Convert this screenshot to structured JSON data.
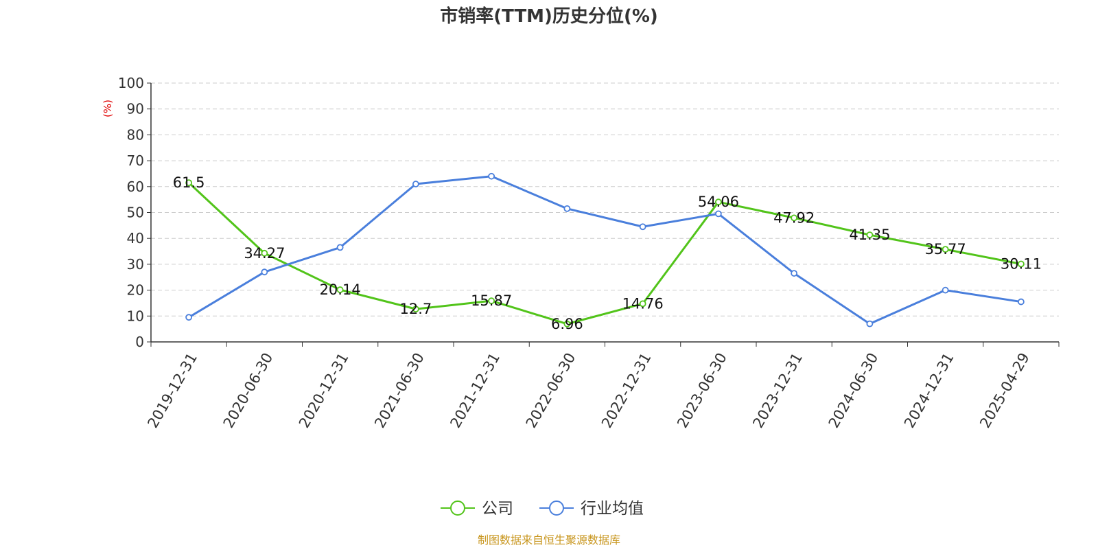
{
  "title": "市销率(TTM)历史分位(%)",
  "source": "制图数据来自恒生聚源数据库",
  "colors": {
    "company": "#52c41a",
    "industry": "#4a7fdc",
    "unit_label": "#e00000",
    "source_text": "#c8961e",
    "title_text": "#333333",
    "grid": "#cccccc"
  },
  "chart_data": {
    "type": "line",
    "title": "市销率(TTM)历史分位(%)",
    "ylabel": "(%)",
    "ylim": [
      0,
      100
    ],
    "yticks": [
      0,
      10,
      20,
      30,
      40,
      50,
      60,
      70,
      80,
      90,
      100
    ],
    "grid": true,
    "legend_position": "bottom-center",
    "categories": [
      "2019-12-31",
      "2020-06-30",
      "2020-12-31",
      "2021-06-30",
      "2021-12-31",
      "2022-06-30",
      "2022-12-31",
      "2023-06-30",
      "2023-12-31",
      "2024-06-30",
      "2024-12-31",
      "2025-04-29"
    ],
    "series": [
      {
        "name": "公司",
        "color": "#52c41a",
        "values": [
          61.5,
          34.27,
          20.14,
          12.7,
          15.87,
          6.96,
          14.76,
          54.06,
          47.92,
          41.35,
          35.77,
          30.11
        ],
        "labels": [
          "61.5",
          "34.27",
          "20.14",
          "12.7",
          "15.87",
          "6.96",
          "14.76",
          "54.06",
          "47.92",
          "41.35",
          "35.77",
          "30.11"
        ]
      },
      {
        "name": "行业均值",
        "color": "#4a7fdc",
        "values": [
          9.5,
          27,
          36.5,
          61,
          64,
          51.5,
          44.5,
          49.5,
          26.5,
          7,
          20,
          15.5
        ]
      }
    ]
  }
}
